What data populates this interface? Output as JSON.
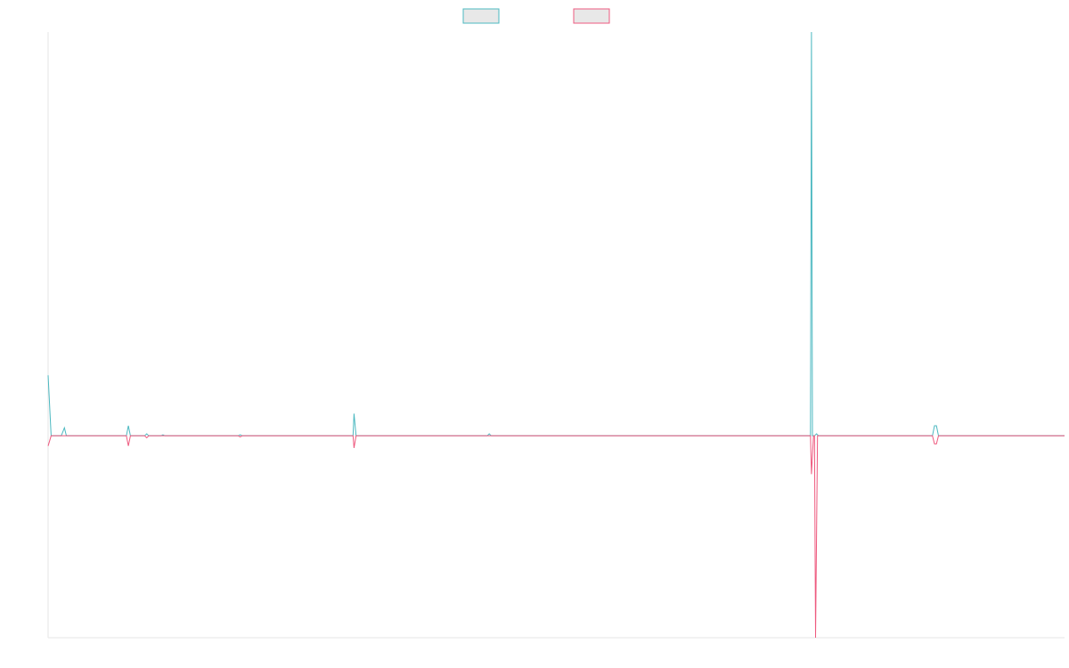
{
  "chart_data": {
    "type": "line",
    "title": "",
    "xlabel": "",
    "ylabel": "",
    "xlim": [
      0,
      100
    ],
    "ylim": [
      -1.0,
      2.0
    ],
    "grid": false,
    "legend_placement": "top-center",
    "series": [
      {
        "color": "#4bb8c0",
        "legend_fill": "#e8e8e8",
        "points": [
          [
            0,
            0.3
          ],
          [
            0.3,
            0
          ],
          [
            1.3,
            0
          ],
          [
            1.6,
            0.04
          ],
          [
            1.8,
            0
          ],
          [
            7.7,
            0
          ],
          [
            7.9,
            0.05
          ],
          [
            8.1,
            0
          ],
          [
            9.5,
            0
          ],
          [
            9.7,
            0.01
          ],
          [
            9.9,
            0
          ],
          [
            11.1,
            0
          ],
          [
            11.3,
            0.005
          ],
          [
            11.5,
            0
          ],
          [
            18.7,
            0
          ],
          [
            18.9,
            0.005
          ],
          [
            19.1,
            0
          ],
          [
            30.0,
            0
          ],
          [
            30.1,
            0.11
          ],
          [
            30.3,
            0
          ],
          [
            43.2,
            0
          ],
          [
            43.4,
            0.01
          ],
          [
            43.6,
            0
          ],
          [
            75.0,
            0
          ],
          [
            75.1,
            2.0
          ],
          [
            75.2,
            0
          ],
          [
            75.4,
            0
          ],
          [
            75.6,
            0.01
          ],
          [
            75.8,
            0
          ],
          [
            87.0,
            0
          ],
          [
            87.2,
            0.05
          ],
          [
            87.4,
            0.05
          ],
          [
            87.6,
            0
          ],
          [
            100,
            0
          ]
        ]
      },
      {
        "color": "#ee5a7f",
        "legend_fill": "#e8e8e8",
        "points": [
          [
            0,
            -0.05
          ],
          [
            0.3,
            0
          ],
          [
            7.7,
            0
          ],
          [
            7.9,
            -0.05
          ],
          [
            8.1,
            0
          ],
          [
            9.5,
            0
          ],
          [
            9.7,
            -0.01
          ],
          [
            9.9,
            0
          ],
          [
            18.7,
            0
          ],
          [
            18.9,
            -0.005
          ],
          [
            19.1,
            0
          ],
          [
            30.0,
            0
          ],
          [
            30.1,
            -0.06
          ],
          [
            30.3,
            0
          ],
          [
            75.0,
            0
          ],
          [
            75.1,
            -0.19
          ],
          [
            75.3,
            0
          ],
          [
            75.4,
            0
          ],
          [
            75.5,
            -1.0
          ],
          [
            75.7,
            0
          ],
          [
            87.0,
            0
          ],
          [
            87.2,
            -0.04
          ],
          [
            87.4,
            -0.04
          ],
          [
            87.6,
            0
          ],
          [
            100,
            0
          ]
        ]
      }
    ]
  }
}
